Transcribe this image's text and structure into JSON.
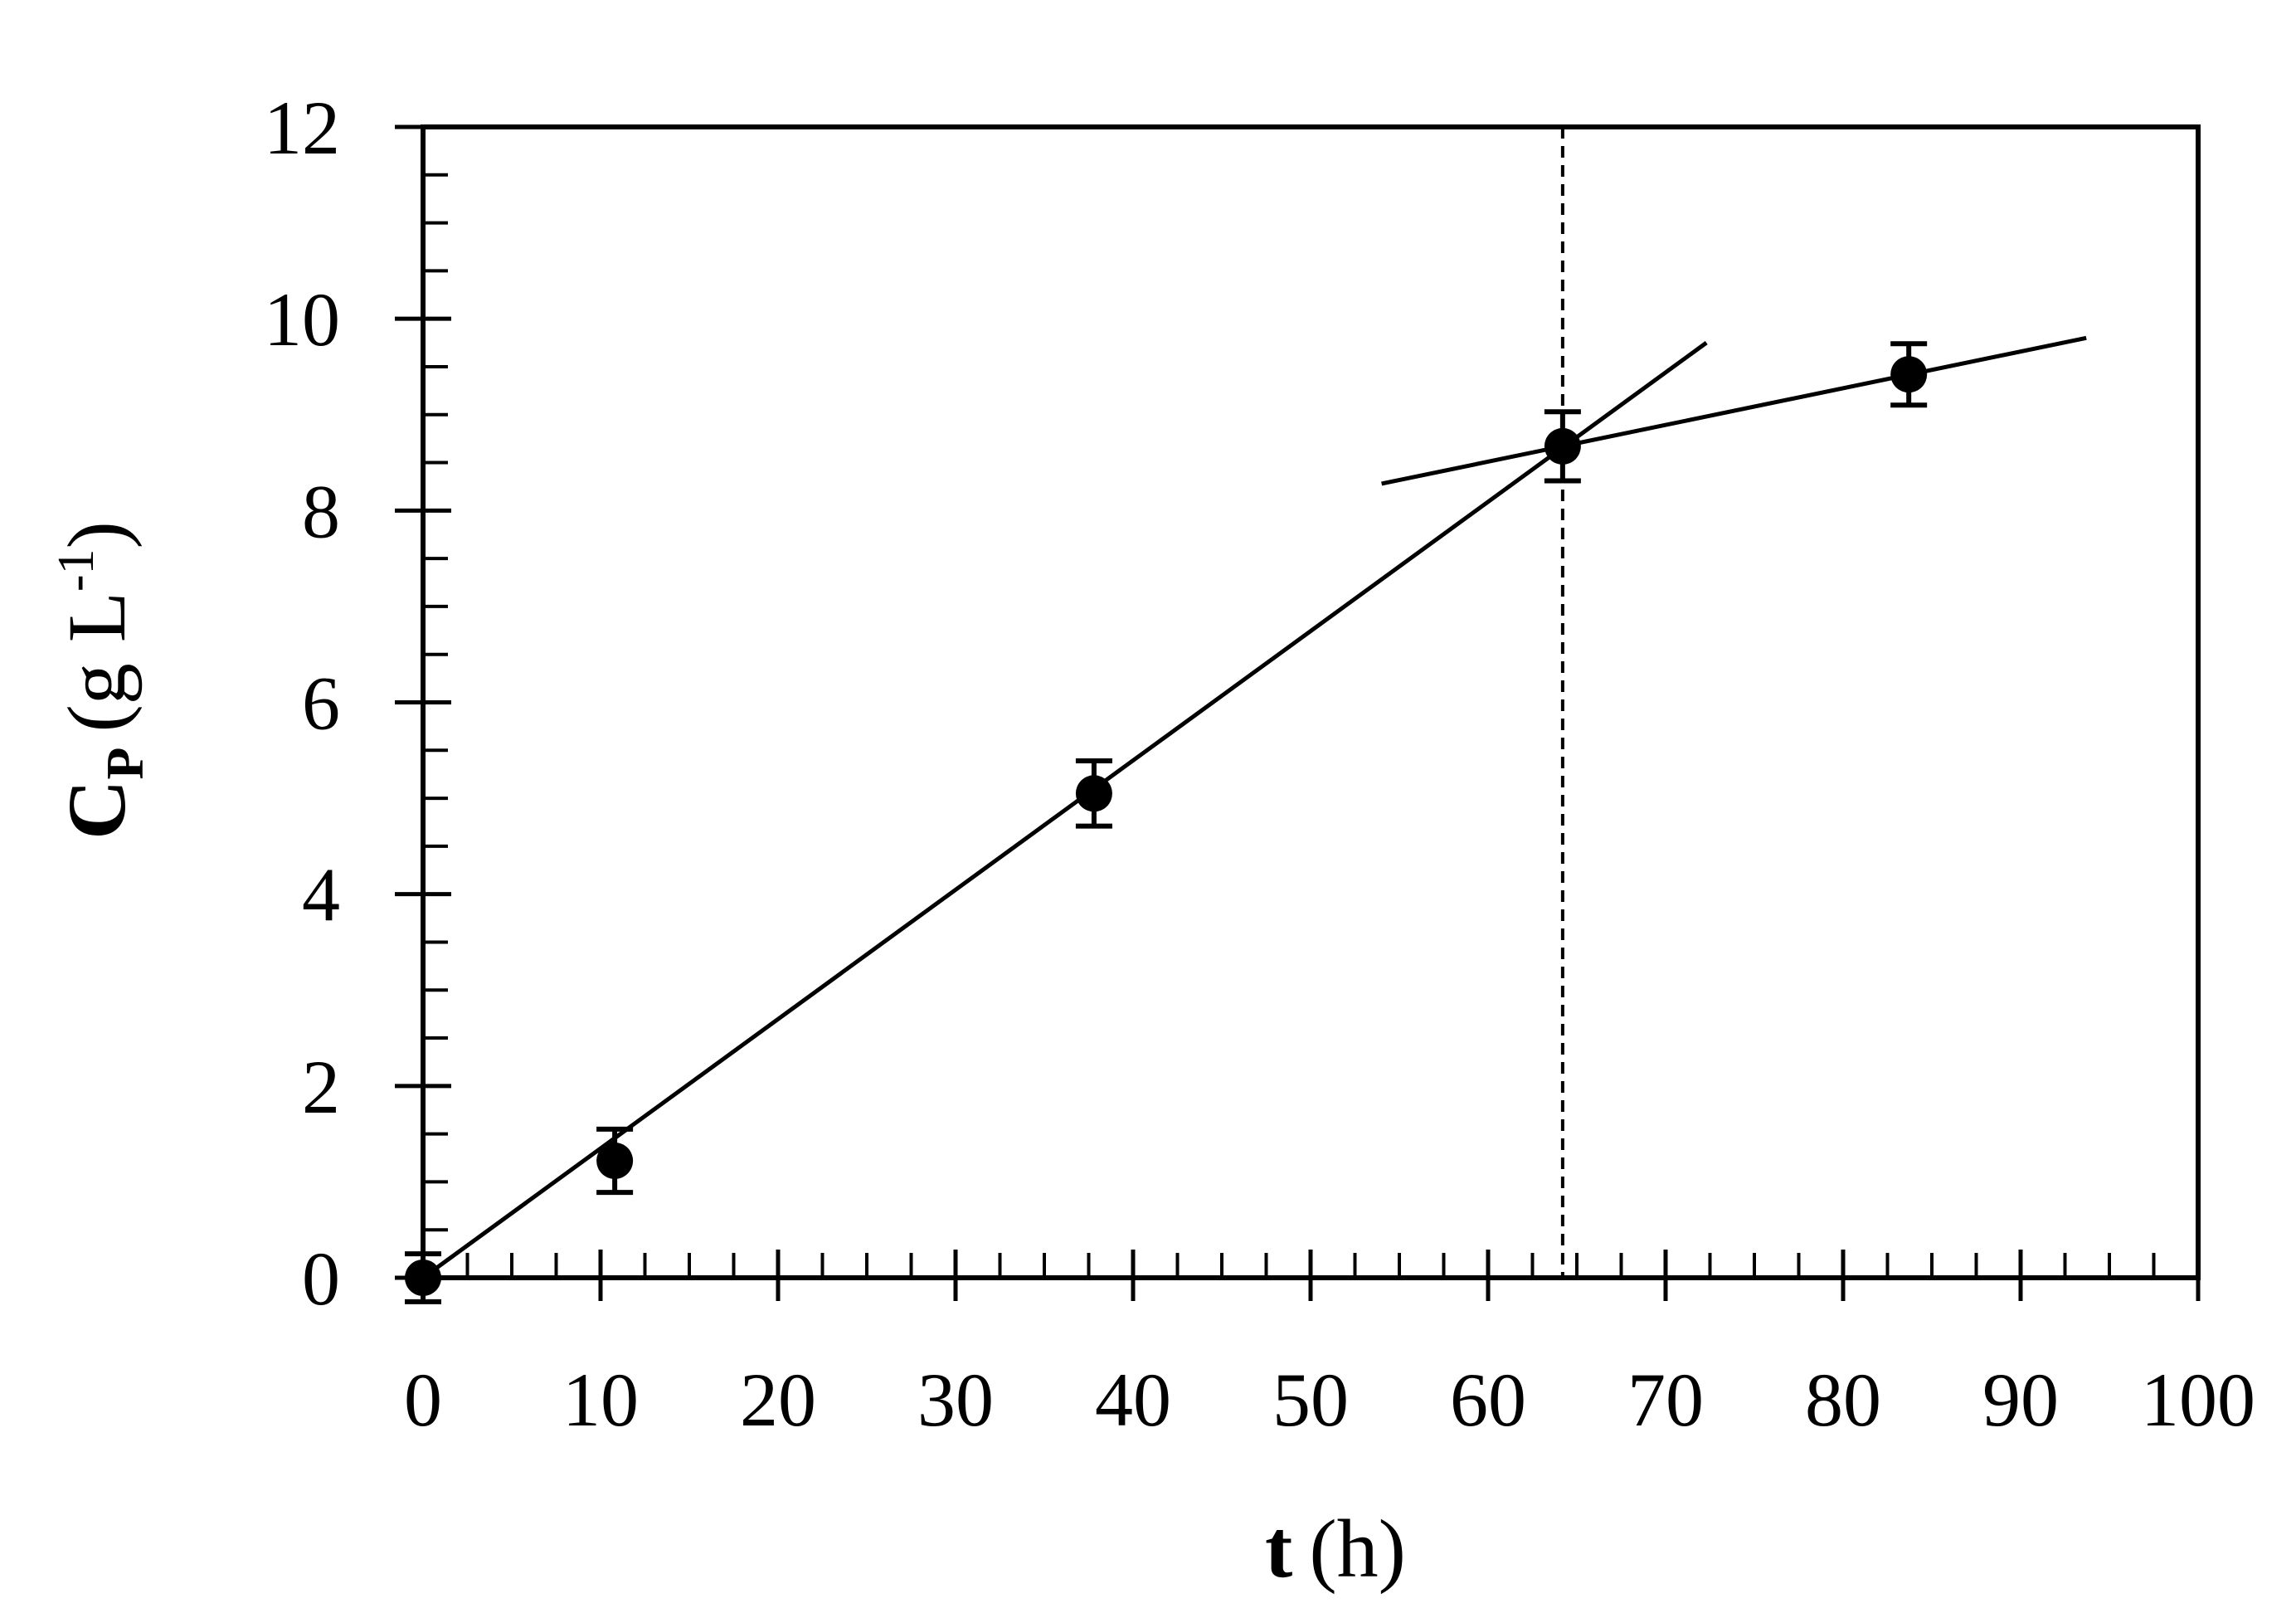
{
  "chart_data": {
    "type": "scatter",
    "title": "",
    "xlabel": {
      "symbol": "t",
      "unit": "(h)"
    },
    "ylabel": {
      "symbol": "C",
      "subscript": "P",
      "unit_open": "(g L",
      "unit_sup": "-1",
      "unit_close": ")"
    },
    "xlim": [
      0,
      100
    ],
    "ylim": [
      0,
      12
    ],
    "x_ticks": [
      "0",
      "10",
      "20",
      "30",
      "40",
      "50",
      "60",
      "70",
      "80",
      "90",
      "100"
    ],
    "y_ticks": [
      "0",
      "2",
      "4",
      "6",
      "8",
      "10",
      "12"
    ],
    "x_minor_step": 2.5,
    "y_minor_step": 0.5,
    "grid": false,
    "marker_color": "#000000",
    "series": [
      {
        "x": [
          0,
          10.8,
          37.8,
          64.2,
          83.7
        ],
        "y": [
          0,
          1.22,
          5.05,
          8.67,
          9.42
        ],
        "error": [
          0.25,
          0.33,
          0.34,
          0.36,
          0.32
        ]
      }
    ],
    "fit_lines": [
      {
        "x": [
          0,
          72.3
        ],
        "y": [
          0,
          9.75
        ]
      },
      {
        "x": [
          54.0,
          93.7
        ],
        "y": [
          8.28,
          9.8
        ]
      }
    ],
    "vertical_line": {
      "x": 64.2,
      "style": "dashed"
    }
  }
}
